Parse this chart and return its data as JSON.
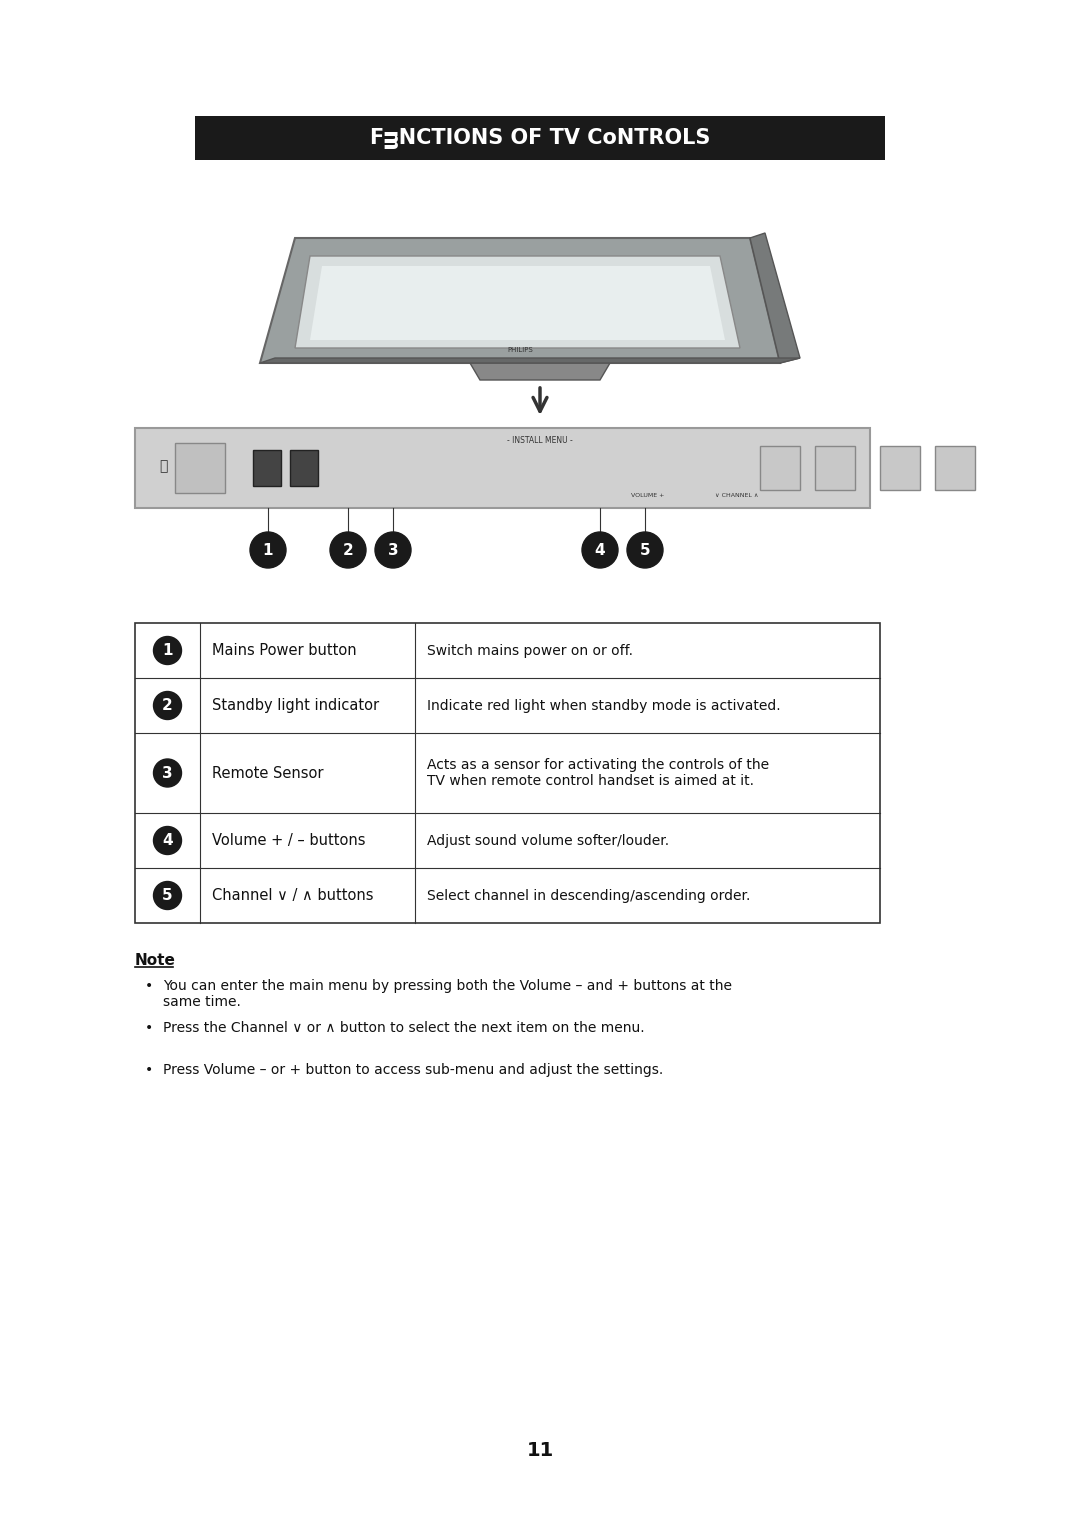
{
  "title": "Functions of TV Controls",
  "title_display": "FᴟNCTIONS OF TV CᴏNTROLS",
  "title_bg": "#1a1a1a",
  "title_fg": "#ffffff",
  "page_bg": "#ffffff",
  "page_number": "11",
  "table_rows": [
    {
      "num": "1",
      "label": "Mains Power button",
      "desc": "Switch mains power on or off."
    },
    {
      "num": "2",
      "label": "Standby light indicator",
      "desc": "Indicate red light when standby mode is activated."
    },
    {
      "num": "3",
      "label": "Remote Sensor",
      "desc": "Acts as a sensor for activating the controls of the\nTV when remote control handset is aimed at it."
    },
    {
      "num": "4",
      "label": "Volume + / – buttons",
      "desc": "Adjust sound volume softer/louder."
    },
    {
      "num": "5",
      "label": "Channel ∨ / ∧ buttons",
      "desc": "Select channel in descending/ascending order."
    }
  ],
  "note_title": "Note",
  "note_bullets": [
    "You can enter the main menu by pressing both the Volume – and + buttons at the\nsame time.",
    "Press the Channel ∨ or ∧ button to select the next item on the menu.",
    "Press Volume – or + button to access sub-menu and adjust the settings."
  ]
}
